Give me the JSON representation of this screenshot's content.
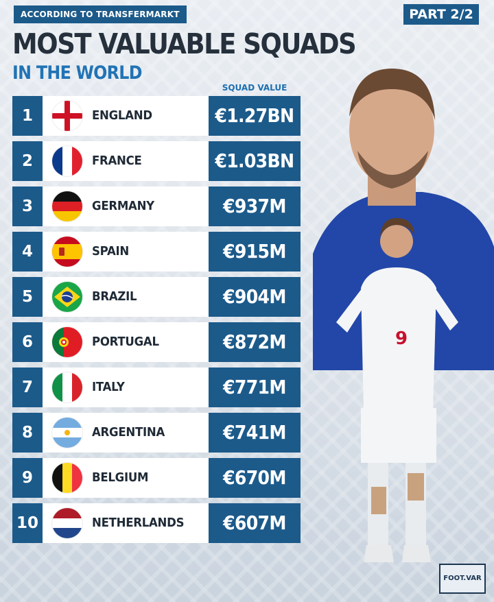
{
  "source_badge": "ACCORDING TO TRANSFERMARKT",
  "part_badge": "PART 2/2",
  "title": "MOST VALUABLE SQUADS",
  "subtitle": "IN THE WORLD",
  "column_header": "SQUAD VALUE",
  "brand": "FOOT.VAR",
  "colors": {
    "accent": "#1c5a8a",
    "subtitle": "#2173b5",
    "title": "#25303c"
  },
  "rows": [
    {
      "rank": "1",
      "country": "ENGLAND",
      "value": "€1.27BN",
      "flag_icon": "england-flag-icon"
    },
    {
      "rank": "2",
      "country": "FRANCE",
      "value": "€1.03BN",
      "flag_icon": "france-flag-icon"
    },
    {
      "rank": "3",
      "country": "GERMANY",
      "value": "€937M",
      "flag_icon": "germany-flag-icon"
    },
    {
      "rank": "4",
      "country": "SPAIN",
      "value": "€915M",
      "flag_icon": "spain-flag-icon"
    },
    {
      "rank": "5",
      "country": "BRAZIL",
      "value": "€904M",
      "flag_icon": "brazil-flag-icon"
    },
    {
      "rank": "6",
      "country": "PORTUGAL",
      "value": "€872M",
      "flag_icon": "portugal-flag-icon"
    },
    {
      "rank": "7",
      "country": "ITALY",
      "value": "€771M",
      "flag_icon": "italy-flag-icon"
    },
    {
      "rank": "8",
      "country": "ARGENTINA",
      "value": "€741M",
      "flag_icon": "argentina-flag-icon"
    },
    {
      "rank": "9",
      "country": "BELGIUM",
      "value": "€670M",
      "flag_icon": "belgium-flag-icon"
    },
    {
      "rank": "10",
      "country": "NETHERLANDS",
      "value": "€607M",
      "flag_icon": "netherlands-flag-icon"
    }
  ]
}
